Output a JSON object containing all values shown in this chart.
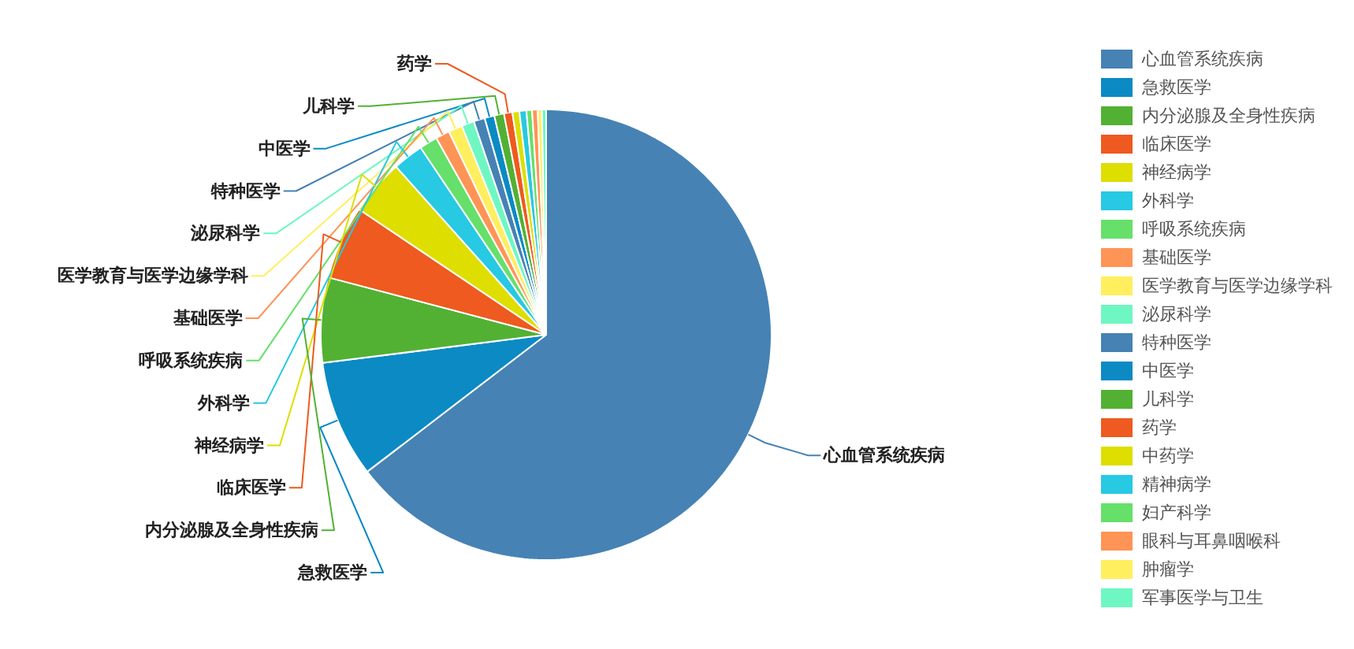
{
  "chart_data": {
    "type": "pie",
    "categories": [
      "心血管系统疾病",
      "急救医学",
      "内分泌腺及全身性疾病",
      "临床医学",
      "神经病学",
      "外科学",
      "呼吸系统疾病",
      "基础医学",
      "医学教育与医学边缘学科",
      "泌尿科学",
      "特种医学",
      "中医学",
      "儿科学",
      "药学",
      "中药学",
      "精神病学",
      "妇产科学",
      "眼科与耳鼻咽喉科",
      "肿瘤学",
      "军事医学与卫生"
    ],
    "values": [
      64.6,
      8.4,
      6.1,
      5.3,
      4.0,
      2.2,
      1.3,
      1.0,
      1.0,
      0.9,
      0.8,
      0.7,
      0.7,
      0.6,
      0.5,
      0.5,
      0.4,
      0.4,
      0.3,
      0.3
    ],
    "colors": [
      "#4682b4",
      "#0b8ac4",
      "#52b133",
      "#ee5a1f",
      "#dede00",
      "#27c9e3",
      "#66e06a",
      "#ff9457",
      "#ffef5f",
      "#6ef7c2",
      "#4682b4",
      "#0b8ac4",
      "#52b133",
      "#ee5a1f",
      "#dede00",
      "#27c9e3",
      "#66e06a",
      "#ff9457",
      "#ffef5f",
      "#6ef7c2"
    ],
    "annotations": [
      {
        "text": "心血管系统疾病",
        "x": "心血管系统疾病"
      },
      {
        "text": "急救医学",
        "x": "急救医学"
      },
      {
        "text": "内分泌腺及全身性疾病",
        "x": "内分泌腺及全身性疾病"
      },
      {
        "text": "临床医学",
        "x": "临床医学"
      },
      {
        "text": "神经病学",
        "x": "神经病学"
      },
      {
        "text": "外科学",
        "x": "外科学"
      },
      {
        "text": "呼吸系统疾病",
        "x": "呼吸系统疾病"
      },
      {
        "text": "基础医学",
        "x": "基础医学"
      },
      {
        "text": "医学教育与医学边缘学科",
        "x": "医学教育与医学边缘学科"
      },
      {
        "text": "泌尿科学",
        "x": "泌尿科学"
      },
      {
        "text": "特种医学",
        "x": "特种医学"
      },
      {
        "text": "中医学",
        "x": "中医学"
      },
      {
        "text": "儿科学",
        "x": "儿科学"
      },
      {
        "text": "药学",
        "x": "药学"
      }
    ],
    "legend": "right"
  }
}
